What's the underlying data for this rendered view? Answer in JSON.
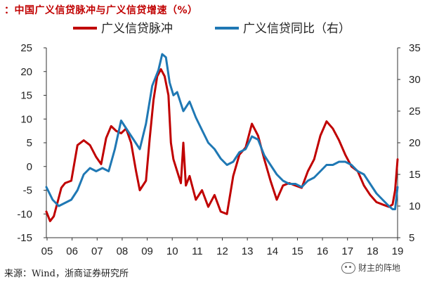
{
  "title": "：中国广义信贷脉冲与广义信贷增速（%）",
  "source": "来源：Wind，浙商证券研究所",
  "watermark": {
    "icon": "wechat-icon",
    "text": "财主的阵地"
  },
  "colors": {
    "left_series": "#c00000",
    "right_series": "#1f78b4",
    "axis": "#333333"
  },
  "chart_data": {
    "type": "line",
    "title": "：中国广义信贷脉冲与广义信贷增速（%）",
    "x_ticks": [
      "05",
      "06",
      "07",
      "08",
      "09",
      "10",
      "11",
      "12",
      "13",
      "14",
      "15",
      "16",
      "17",
      "18",
      "19"
    ],
    "x_range": [
      2005.0,
      2019.1
    ],
    "y_left": {
      "ticks": [
        -15,
        -10,
        -5,
        0,
        5,
        10,
        15,
        20,
        25
      ],
      "range": [
        -15,
        25
      ]
    },
    "y_right": {
      "ticks": [
        5,
        10,
        15,
        20,
        25,
        30,
        35
      ],
      "range": [
        5,
        35
      ]
    },
    "legend": {
      "placement": "top"
    },
    "grid": false,
    "series": [
      {
        "name": "广义信贷脉冲",
        "axis": "left",
        "x": [
          2005.0,
          2005.15,
          2005.3,
          2005.45,
          2005.6,
          2005.75,
          2006.0,
          2006.25,
          2006.5,
          2006.75,
          2007.0,
          2007.2,
          2007.4,
          2007.6,
          2007.8,
          2008.0,
          2008.2,
          2008.4,
          2008.6,
          2008.75,
          2009.0,
          2009.15,
          2009.3,
          2009.45,
          2009.6,
          2009.75,
          2009.9,
          2010.0,
          2010.1,
          2010.25,
          2010.4,
          2010.5,
          2010.6,
          2010.75,
          2011.0,
          2011.25,
          2011.5,
          2011.75,
          2012.0,
          2012.25,
          2012.5,
          2012.75,
          2013.0,
          2013.25,
          2013.5,
          2013.75,
          2014.0,
          2014.25,
          2014.5,
          2014.75,
          2015.0,
          2015.25,
          2015.5,
          2015.75,
          2016.0,
          2016.25,
          2016.5,
          2016.75,
          2017.0,
          2017.25,
          2017.5,
          2017.75,
          2018.0,
          2018.25,
          2018.5,
          2018.75,
          2018.9,
          2019.0,
          2019.1
        ],
        "values": [
          -9.5,
          -11.5,
          -10.5,
          -7.5,
          -4.5,
          -3.5,
          -3.0,
          4.5,
          5.5,
          4.5,
          2.0,
          0.5,
          6.0,
          8.5,
          7.5,
          7.0,
          8.0,
          5.0,
          -1.0,
          -5.0,
          -3.0,
          6.0,
          14.0,
          19.0,
          20.5,
          19.0,
          15.0,
          5.0,
          1.5,
          -1.0,
          -3.5,
          5.0,
          -4.0,
          -2.0,
          -7.0,
          -5.0,
          -8.5,
          -6.0,
          -9.5,
          -10.0,
          -2.0,
          2.5,
          4.0,
          9.0,
          6.5,
          1.5,
          -3.0,
          -7.0,
          -4.0,
          -3.5,
          -4.0,
          -4.5,
          -1.0,
          1.5,
          6.5,
          9.5,
          8.0,
          5.5,
          2.5,
          0.0,
          -1.0,
          -4.0,
          -6.0,
          -7.5,
          -8.0,
          -8.5,
          -8.0,
          -5.0,
          1.5
        ]
      },
      {
        "name": "广义信贷同比（右）",
        "axis": "right",
        "x": [
          2005.0,
          2005.25,
          2005.5,
          2005.75,
          2006.0,
          2006.25,
          2006.5,
          2006.75,
          2007.0,
          2007.25,
          2007.5,
          2007.75,
          2008.0,
          2008.25,
          2008.5,
          2008.75,
          2009.0,
          2009.25,
          2009.5,
          2009.65,
          2009.8,
          2009.95,
          2010.1,
          2010.25,
          2010.5,
          2010.75,
          2011.0,
          2011.25,
          2011.5,
          2011.75,
          2012.0,
          2012.25,
          2012.5,
          2012.75,
          2013.0,
          2013.25,
          2013.5,
          2013.75,
          2014.0,
          2014.25,
          2014.5,
          2014.75,
          2015.0,
          2015.25,
          2015.5,
          2015.75,
          2016.0,
          2016.25,
          2016.5,
          2016.75,
          2017.0,
          2017.25,
          2017.5,
          2017.75,
          2018.0,
          2018.25,
          2018.5,
          2018.75,
          2018.9,
          2019.0,
          2019.1
        ],
        "values": [
          13.0,
          11.0,
          10.0,
          10.5,
          11.0,
          12.5,
          15.0,
          16.0,
          15.5,
          16.0,
          15.5,
          19.0,
          23.5,
          22.0,
          20.5,
          19.0,
          23.0,
          29.0,
          31.5,
          34.0,
          33.5,
          29.5,
          27.5,
          28.0,
          25.0,
          26.5,
          24.0,
          22.0,
          20.0,
          19.0,
          17.5,
          16.5,
          17.0,
          18.5,
          19.0,
          21.0,
          20.5,
          18.0,
          16.5,
          15.0,
          14.0,
          13.5,
          13.5,
          13.0,
          14.0,
          14.5,
          15.5,
          16.5,
          16.5,
          17.0,
          17.0,
          16.5,
          15.5,
          15.0,
          13.5,
          12.0,
          11.0,
          10.0,
          9.5,
          9.5,
          13.0
        ]
      }
    ]
  }
}
